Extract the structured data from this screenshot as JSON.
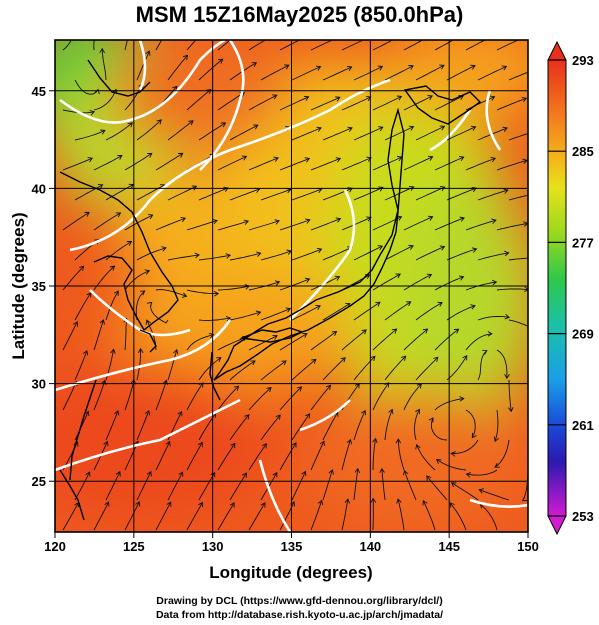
{
  "title": "MSM 15Z16May2025 (850.0hPa)",
  "xlabel": "Longitude (degrees)",
  "ylabel": "Latitude  (degrees)",
  "xticks": [
    "120",
    "125",
    "130",
    "135",
    "140",
    "145",
    "150"
  ],
  "yticks": [
    "25",
    "30",
    "35",
    "40",
    "45"
  ],
  "xlim": [
    120,
    150
  ],
  "ylim": [
    22.4,
    47.6
  ],
  "colorbar": {
    "labels": [
      "293",
      "285",
      "277",
      "269",
      "261",
      "253"
    ],
    "range": [
      253,
      293
    ]
  },
  "credits": {
    "line1": "Drawing by DCL (https://www.gfd-dennou.org/library/dcl/)",
    "line2": "Data from http://database.rish.kyoto-u.ac.jp/arch/jmadata/"
  }
}
